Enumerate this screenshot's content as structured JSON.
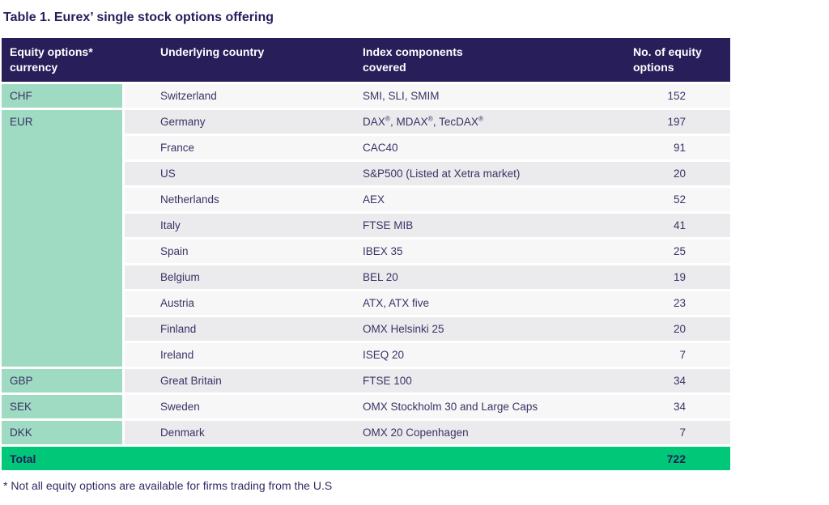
{
  "title": "Table 1. Eurex’ single stock options offering",
  "colors": {
    "header_bg": "#271e5a",
    "currency_cell_bg": "#9fdac3",
    "total_row_bg": "#00c878",
    "stripe_light": "#f7f7f8",
    "stripe_dark": "#ebebed",
    "text": "#3b3365"
  },
  "table": {
    "columns": {
      "currency": "Equity options*\ncurrency",
      "country": "Underlying country",
      "index": "Index components\ncovered",
      "count": "No. of equity\noptions"
    },
    "rows": [
      {
        "currency": "CHF",
        "country": "Switzerland",
        "index": "SMI, SLI, SMIM",
        "count": 152
      },
      {
        "currency": "EUR",
        "country": "Germany",
        "index": "DAX®, MDAX®, TecDAX®",
        "count": 197
      },
      {
        "country": "France",
        "index": "CAC40",
        "count": 91
      },
      {
        "country": "US",
        "index": "S&P500 (Listed at Xetra market)",
        "count": 20
      },
      {
        "country": "Netherlands",
        "index": "AEX",
        "count": 52
      },
      {
        "country": "Italy",
        "index": "FTSE MIB",
        "count": 41
      },
      {
        "country": "Spain",
        "index": "IBEX 35",
        "count": 25
      },
      {
        "country": "Belgium",
        "index": "BEL 20",
        "count": 19
      },
      {
        "country": "Austria",
        "index": "ATX, ATX five",
        "count": 23
      },
      {
        "country": "Finland",
        "index": "OMX Helsinki 25",
        "count": 20
      },
      {
        "country": "Ireland",
        "index": "ISEQ 20",
        "count": 7
      },
      {
        "currency": "GBP",
        "country": "Great Britain",
        "index": "FTSE 100",
        "count": 34
      },
      {
        "currency": "SEK",
        "country": "Sweden",
        "index": "OMX Stockholm 30 and Large Caps",
        "count": 34
      },
      {
        "currency": "DKK",
        "country": "Denmark",
        "index": "OMX 20 Copenhagen",
        "count": 7
      }
    ],
    "total": {
      "label": "Total",
      "value": 722
    }
  },
  "footnote": "* Not all equity options are available for firms trading from the U.S"
}
